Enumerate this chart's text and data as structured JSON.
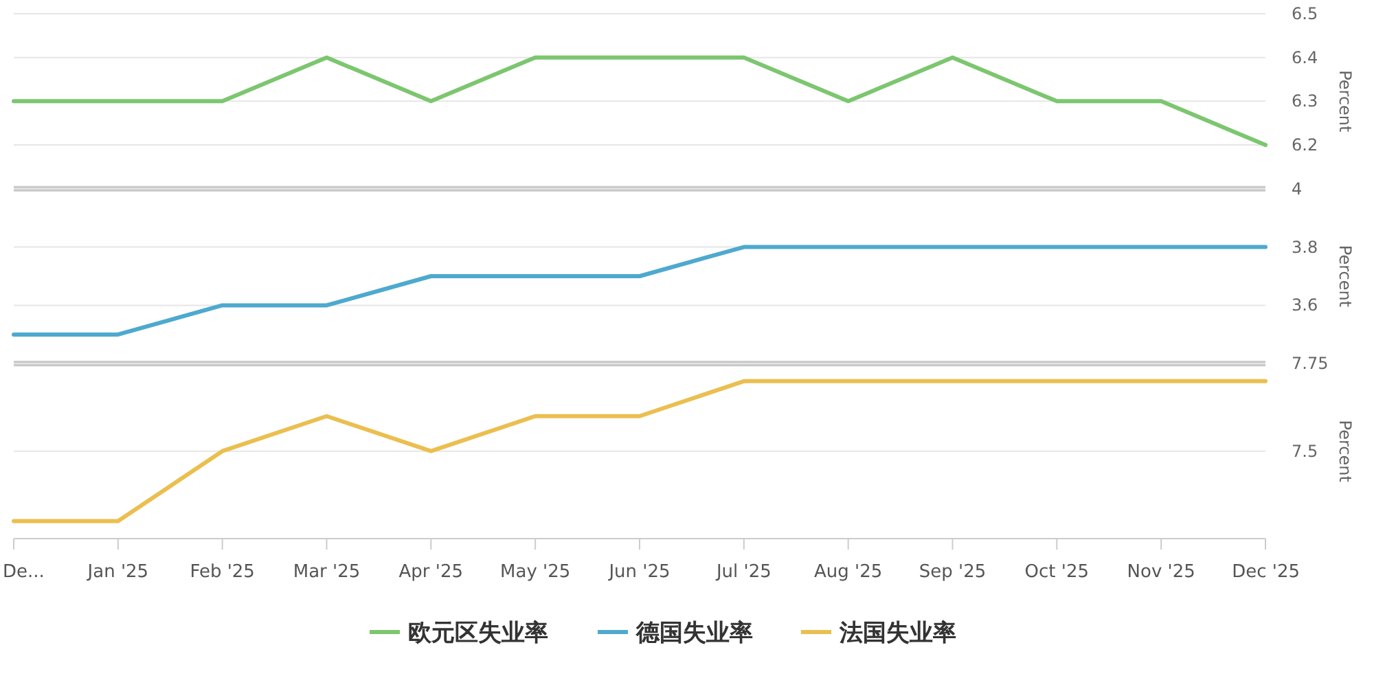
{
  "chart_data": [
    {
      "type": "line",
      "series": [
        {
          "name": "欧元区失业率",
          "color": "#7cc66f",
          "values": [
            6.3,
            6.3,
            6.3,
            6.4,
            6.3,
            6.4,
            6.4,
            6.4,
            6.3,
            6.4,
            6.3,
            6.3,
            6.2
          ]
        }
      ],
      "ylim": [
        6.1,
        6.5
      ],
      "yticks": [
        6.2,
        6.3,
        6.4,
        6.5
      ],
      "ylabel": "Percent",
      "grid": "y",
      "legend": "bottom",
      "tick_labels": "y"
    },
    {
      "type": "line",
      "series": [
        {
          "name": "德国失业率",
          "color": "#4ea9cf",
          "values": [
            3.5,
            3.5,
            3.6,
            3.6,
            3.7,
            3.7,
            3.7,
            3.8,
            3.8,
            3.8,
            3.8,
            3.8,
            3.8
          ]
        }
      ],
      "ylim": [
        3.4,
        4
      ],
      "yticks": [
        3.6,
        3.8,
        4
      ],
      "ylabel": "Percent",
      "grid": "y",
      "legend": "bottom",
      "tick_labels": "y"
    },
    {
      "type": "line",
      "categories": [
        "De...",
        "Jan '25",
        "Feb '25",
        "Mar '25",
        "Apr '25",
        "May '25",
        "Jun '25",
        "Jul '25",
        "Aug '25",
        "Sep '25",
        "Oct '25",
        "Nov '25",
        "Dec '25"
      ],
      "series": [
        {
          "name": "法国失业率",
          "color": "#ebbf4f",
          "values": [
            7.3,
            7.3,
            7.5,
            7.6,
            7.5,
            7.6,
            7.6,
            7.7,
            7.7,
            7.7,
            7.7,
            7.7,
            7.7
          ]
        }
      ],
      "ylim": [
        7.25,
        7.75
      ],
      "yticks": [
        7.5,
        7.75
      ],
      "ylabel": "Percent",
      "grid": "y",
      "legend": "bottom"
    }
  ]
}
